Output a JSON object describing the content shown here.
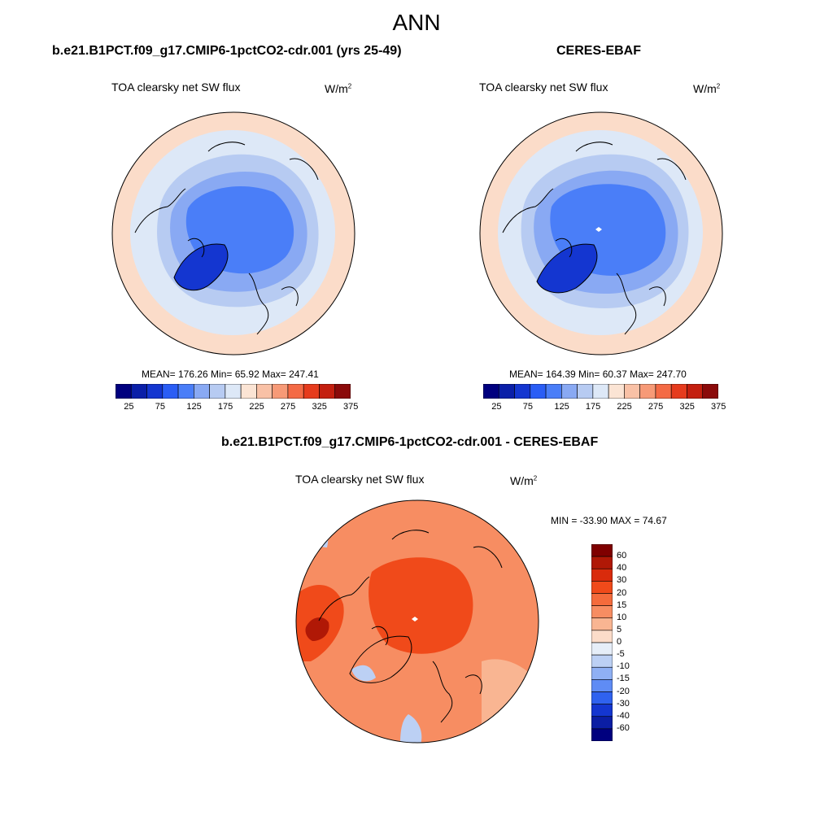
{
  "page_title": "ANN",
  "panels": [
    {
      "case": "b.e21.B1PCT.f09_g17.CMIP6-1pctCO2-cdr.001 (yrs 25-49)",
      "variable": "TOA clearsky net SW flux",
      "units_base": "W/m",
      "units_exp": "2",
      "stats": "MEAN= 176.26  Min=  65.92  Max= 247.41"
    },
    {
      "case": "CERES-EBAF",
      "variable": "TOA clearsky net SW flux",
      "units_base": "W/m",
      "units_exp": "2",
      "stats": "MEAN= 164.39  Min=  60.37  Max= 247.70"
    },
    {
      "case": "b.e21.B1PCT.f09_g17.CMIP6-1pctCO2-cdr.001 - CERES-EBAF",
      "variable": "TOA clearsky net SW flux",
      "units_base": "W/m",
      "units_exp": "2",
      "stats": "MIN = -33.90 MAX =  74.67"
    }
  ],
  "colorbar_abs": {
    "ticks": [
      "25",
      "75",
      "125",
      "175",
      "225",
      "275",
      "325",
      "375"
    ],
    "colors": [
      "#00007f",
      "#0a1fa8",
      "#1436d0",
      "#2a5df5",
      "#4a7ef8",
      "#89a9f3",
      "#b7cbf2",
      "#dde8f7",
      "#fbe4d4",
      "#f9c1a6",
      "#f79a77",
      "#f46a45",
      "#e63b1d",
      "#c41f0f",
      "#8b0a0a"
    ]
  },
  "colorbar_diff": {
    "labels": [
      "60",
      "40",
      "30",
      "20",
      "15",
      "10",
      "5",
      "0",
      "-5",
      "-10",
      "-15",
      "-20",
      "-30",
      "-40",
      "-60"
    ],
    "colors": [
      "#7f0000",
      "#b01806",
      "#d92b0c",
      "#f04a1a",
      "#f46b3c",
      "#f78d62",
      "#f9b592",
      "#fbdcc9",
      "#e6eef8",
      "#bcd0f4",
      "#8fb0f4",
      "#5f8cf5",
      "#2f62ef",
      "#1436d0",
      "#0b1ea4",
      "#00007f"
    ]
  },
  "map_fill_colors": {
    "abs_outer": "#fbdcc9",
    "abs_ring": "#dde8f7",
    "abs_mid": "#b7cbf2",
    "abs_inner": "#89a9f3",
    "abs_core": "#4a7ef8",
    "abs_green": "#1436d0",
    "diff_base": "#f78d62",
    "diff_core": "#f04a1a",
    "diff_warm": "#f9b592",
    "diff_hot": "#b01806",
    "diff_cool": "#bcd0f4"
  }
}
